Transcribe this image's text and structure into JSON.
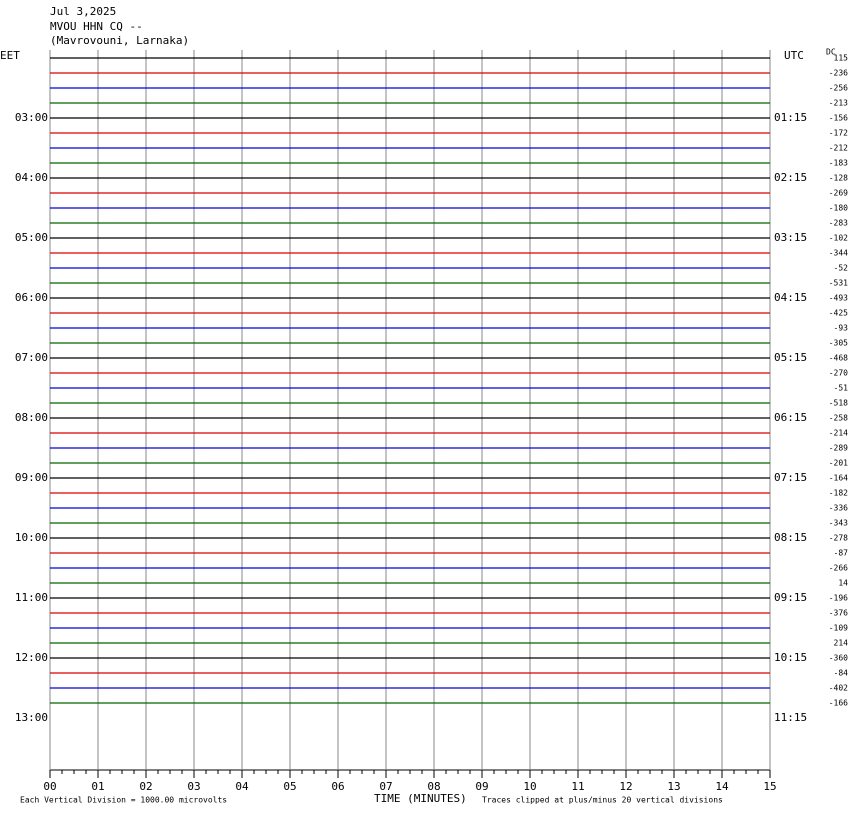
{
  "chart_data": {
    "type": "helicorder",
    "title_lines": [
      "Jul 3,2025",
      "MVOU HHN CQ --",
      "(Mavrovouni, Larnaka)"
    ],
    "left_zone": "EET",
    "right_zone": "UTC",
    "dc_label": "DC",
    "left_times": [
      "03:00",
      "04:00",
      "05:00",
      "06:00",
      "07:00",
      "08:00",
      "09:00",
      "10:00",
      "11:00",
      "12:00",
      "13:00"
    ],
    "right_times": [
      "01:15",
      "02:15",
      "03:15",
      "04:15",
      "05:15",
      "06:15",
      "07:15",
      "08:15",
      "09:15",
      "10:15",
      "11:15"
    ],
    "dc_values": [
      115,
      -236,
      -256,
      -213,
      -156,
      -172,
      -212,
      -183,
      -128,
      -269,
      -180,
      -283,
      -102,
      -344,
      -52,
      -531,
      -493,
      -425,
      -93,
      -305,
      -468,
      -270,
      -51,
      -518,
      -258,
      -214,
      -289,
      -201,
      -164,
      -182,
      -336,
      -343,
      -278,
      -87,
      -266,
      14,
      -196,
      -376,
      -109,
      214,
      -360,
      -84,
      -402,
      -166
    ],
    "trace_colors": [
      "#000000",
      "#dd0000",
      "#0000dd",
      "#006600"
    ],
    "xlabel": "TIME (MINUTES)",
    "xlim": [
      0,
      15
    ],
    "xticks": [
      {
        "value": 0,
        "label": "00"
      },
      {
        "value": 1,
        "label": "01"
      },
      {
        "value": 2,
        "label": "02"
      },
      {
        "value": 3,
        "label": "03"
      },
      {
        "value": 4,
        "label": "04"
      },
      {
        "value": 5,
        "label": "05"
      },
      {
        "value": 6,
        "label": "06"
      },
      {
        "value": 7,
        "label": "07"
      },
      {
        "value": 8,
        "label": "08"
      },
      {
        "value": 9,
        "label": "09"
      },
      10,
      11,
      12,
      13,
      14,
      15
    ],
    "scale_note": "Each Vertical Division = 1000.00 microvolts",
    "clip_note": "Traces clipped at plus/minus 20 vertical divisions",
    "grid": true
  }
}
